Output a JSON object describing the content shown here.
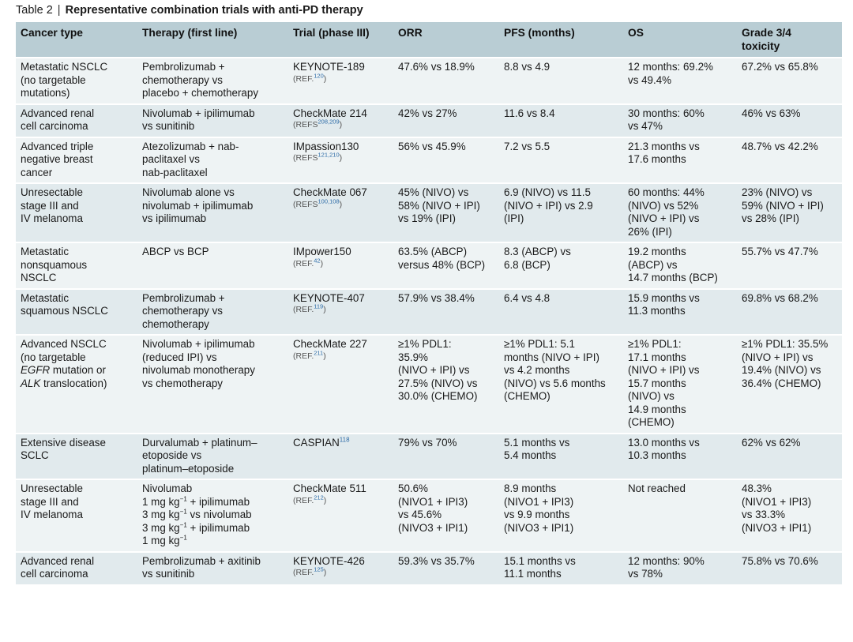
{
  "caption": {
    "label": "Table 2",
    "separator": "|",
    "title": "Representative combination trials with anti-PD therapy"
  },
  "headers": [
    [
      "Cancer type"
    ],
    [
      "Therapy (first line)"
    ],
    [
      "Trial (phase III)"
    ],
    [
      "ORR"
    ],
    [
      "PFS (months)"
    ],
    [
      "OS"
    ],
    [
      "Grade 3/4",
      "toxicity"
    ]
  ],
  "rows": [
    {
      "cancer": [
        "Metastatic NSCLC",
        "(no targetable",
        "mutations)"
      ],
      "therapy": [
        "Pembrolizumab +",
        "chemotherapy vs",
        "placebo + chemotherapy"
      ],
      "trial": "KEYNOTE-189",
      "ref_prefix": "(REF.",
      "ref_num": "120",
      "ref_suffix": ")",
      "orr": [
        "47.6% vs 18.9%"
      ],
      "pfs": [
        "8.8 vs 4.9"
      ],
      "os": [
        "12 months: 69.2%",
        "vs 49.4%"
      ],
      "tox": [
        "67.2% vs 65.8%"
      ]
    },
    {
      "cancer": [
        "Advanced renal",
        "cell carcinoma"
      ],
      "therapy": [
        "Nivolumab + ipilimumab",
        "vs sunitinib"
      ],
      "trial": "CheckMate 214",
      "ref_prefix": "(REFS",
      "ref_num": "208,209",
      "ref_suffix": ")",
      "orr": [
        "42% vs 27%"
      ],
      "pfs": [
        "11.6 vs 8.4"
      ],
      "os": [
        "30 months: 60%",
        "vs 47%"
      ],
      "tox": [
        "46% vs 63%"
      ]
    },
    {
      "cancer": [
        "Advanced triple",
        "negative breast",
        "cancer"
      ],
      "therapy": [
        "Atezolizumab + nab-",
        "paclitaxel vs",
        "nab-paclitaxel"
      ],
      "trial": "IMpassion130",
      "ref_prefix": "(REFS",
      "ref_num": "121,210",
      "ref_suffix": ")",
      "orr": [
        "56% vs 45.9%"
      ],
      "pfs": [
        "7.2 vs 5.5"
      ],
      "os": [
        "21.3 months vs",
        "17.6 months"
      ],
      "tox": [
        "48.7% vs 42.2%"
      ]
    },
    {
      "cancer": [
        "Unresectable",
        "stage III and",
        "IV melanoma"
      ],
      "therapy": [
        "Nivolumab alone vs",
        "nivolumab + ipilimumab",
        "vs ipilimumab"
      ],
      "trial": "CheckMate 067",
      "ref_prefix": "(REFS",
      "ref_num": "100,108",
      "ref_suffix": ")",
      "orr": [
        "45% (NIVO) vs",
        "58% (NIVO + IPI)",
        "vs 19% (IPI)"
      ],
      "pfs": [
        "6.9 (NIVO) vs 11.5",
        "(NIVO + IPI) vs 2.9",
        "(IPI)"
      ],
      "os": [
        "60 months: 44%",
        "(NIVO) vs 52%",
        "(NIVO + IPI) vs",
        "26% (IPI)"
      ],
      "tox": [
        "23% (NIVO) vs",
        "59% (NIVO + IPI)",
        "vs 28% (IPI)"
      ]
    },
    {
      "cancer": [
        "Metastatic",
        "nonsquamous",
        "NSCLC"
      ],
      "therapy": [
        "ABCP vs BCP"
      ],
      "trial": "IMpower150",
      "ref_prefix": "(REF.",
      "ref_num": "42",
      "ref_suffix": ")",
      "orr": [
        "63.5% (ABCP)",
        "versus 48% (BCP)"
      ],
      "pfs": [
        "8.3 (ABCP) vs",
        "6.8 (BCP)"
      ],
      "os": [
        "19.2 months",
        "(ABCP) vs",
        "14.7 months (BCP)"
      ],
      "tox": [
        "55.7% vs 47.7%"
      ]
    },
    {
      "cancer": [
        "Metastatic",
        "squamous NSCLC"
      ],
      "therapy": [
        "Pembrolizumab +",
        "chemotherapy vs",
        "chemotherapy"
      ],
      "trial": "KEYNOTE-407",
      "ref_prefix": "(REF.",
      "ref_num": "119",
      "ref_suffix": ")",
      "orr": [
        "57.9% vs 38.4%"
      ],
      "pfs": [
        "6.4 vs 4.8"
      ],
      "os": [
        "15.9 months vs",
        "11.3 months"
      ],
      "tox": [
        "69.8% vs 68.2%"
      ]
    },
    {
      "cancer_l1": "Advanced NSCLC",
      "cancer_l2": "(no targetable",
      "cancer_l3_italic": "EGFR",
      "cancer_l3_rest": " mutation or",
      "cancer_l4_italic": "ALK",
      "cancer_l4_rest": " translocation)",
      "therapy": [
        "Nivolumab + ipilimumab",
        "(reduced IPI) vs",
        "nivolumab monotherapy",
        "vs chemotherapy"
      ],
      "trial": "CheckMate 227",
      "ref_prefix": "(REF.",
      "ref_num": "211",
      "ref_suffix": ")",
      "orr": [
        "≥1% PDL1:",
        "35.9%",
        "(NIVO + IPI) vs",
        "27.5% (NIVO) vs",
        "30.0% (CHEMO)"
      ],
      "pfs": [
        "≥1% PDL1: 5.1",
        "months (NIVO + IPI)",
        "vs 4.2 months",
        "(NIVO) vs 5.6 months",
        "(CHEMO)"
      ],
      "os": [
        "≥1% PDL1:",
        "17.1 months",
        "(NIVO + IPI) vs",
        "15.7 months",
        "(NIVO) vs",
        "14.9 months",
        "(CHEMO)"
      ],
      "tox": [
        "≥1% PDL1: 35.5%",
        "(NIVO + IPI) vs",
        "19.4% (NIVO) vs",
        "36.4% (CHEMO)"
      ]
    },
    {
      "cancer": [
        "Extensive disease",
        "SCLC"
      ],
      "therapy": [
        "Durvalumab + platinum–",
        "etoposide vs",
        "platinum–etoposide"
      ],
      "trial": "CASPIAN",
      "trial_sup": "118",
      "orr": [
        "79% vs 70%"
      ],
      "pfs": [
        "5.1 months vs",
        "5.4 months"
      ],
      "os": [
        "13.0 months vs",
        "10.3 months"
      ],
      "tox": [
        "62% vs 62%"
      ]
    },
    {
      "cancer": [
        "Unresectable",
        "stage III and",
        "IV melanoma"
      ],
      "therapy_l1": "Nivolumab",
      "therapy_l2": "1 mg kg",
      "therapy_l2_sup": "−1",
      "therapy_l2_rest": " + ipilimumab",
      "therapy_l3": "3 mg kg",
      "therapy_l3_sup": "−1",
      "therapy_l3_rest": " vs nivolumab",
      "therapy_l4": "3 mg kg",
      "therapy_l4_sup": "−1",
      "therapy_l4_rest": " + ipilimumab",
      "therapy_l5": "1 mg kg",
      "therapy_l5_sup": "−1",
      "trial": "CheckMate 511",
      "ref_prefix": "(REF.",
      "ref_num": "212",
      "ref_suffix": ")",
      "orr": [
        "50.6%",
        "(NIVO1 + IPI3)",
        "vs 45.6%",
        "(NIVO3 + IPI1)"
      ],
      "pfs": [
        "8.9 months",
        "(NIVO1 + IPI3)",
        "vs 9.9 months",
        "(NIVO3 + IPI1)"
      ],
      "os": [
        "Not reached"
      ],
      "tox": [
        "48.3%",
        "(NIVO1 + IPI3)",
        "vs 33.3%",
        "(NIVO3 + IPI1)"
      ]
    },
    {
      "cancer": [
        "Advanced renal",
        "cell carcinoma"
      ],
      "therapy": [
        "Pembrolizumab + axitinib",
        "vs sunitinib"
      ],
      "trial": "KEYNOTE-426",
      "ref_prefix": "(REF.",
      "ref_num": "125",
      "ref_suffix": ")",
      "orr": [
        "59.3% vs 35.7%"
      ],
      "pfs": [
        "15.1 months vs",
        "11.1 months"
      ],
      "os": [
        "12 months: 90%",
        "vs 78%"
      ],
      "tox": [
        "75.8% vs 70.6%"
      ]
    }
  ]
}
